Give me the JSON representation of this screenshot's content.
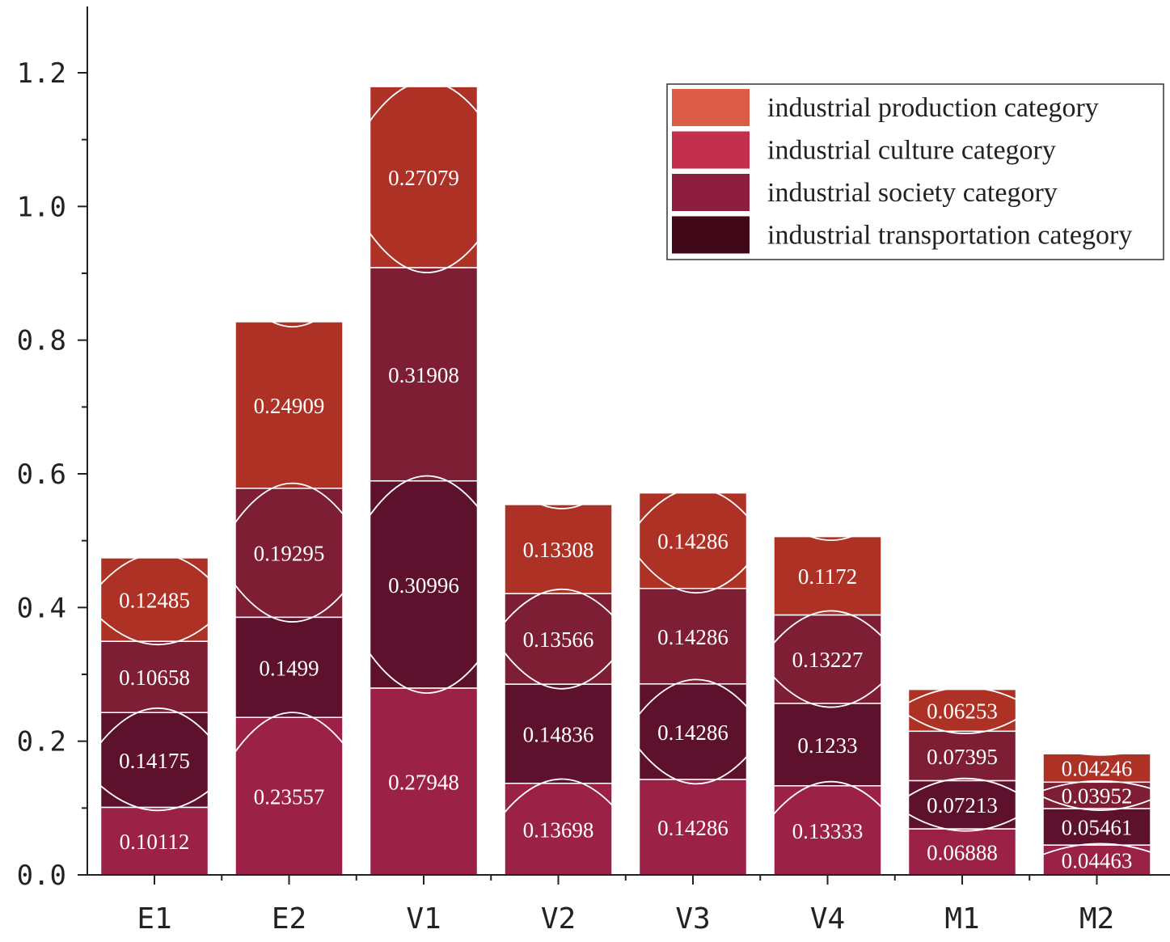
{
  "chart_data": {
    "type": "bar",
    "stacked": true,
    "categories": [
      "E1",
      "E2",
      "V1",
      "V2",
      "V3",
      "V4",
      "M1",
      "M2"
    ],
    "series": [
      {
        "name": "industrial culture category",
        "color": "#9c2147",
        "values": [
          0.10112,
          0.23557,
          0.27948,
          0.13698,
          0.14286,
          0.13333,
          0.06888,
          0.04463
        ]
      },
      {
        "name": "industrial transportation category",
        "color": "#5e112c",
        "values": [
          0.14175,
          0.1499,
          0.30996,
          0.14836,
          0.14286,
          0.1233,
          0.07213,
          0.05461
        ]
      },
      {
        "name": "industrial society category",
        "color": "#7e1e34",
        "values": [
          0.10658,
          0.19295,
          0.31908,
          0.13566,
          0.14286,
          0.13227,
          0.07395,
          0.03952
        ]
      },
      {
        "name": "industrial production category",
        "color": "#ae3126",
        "values": [
          0.12485,
          0.24909,
          0.27079,
          0.13308,
          0.14286,
          0.1172,
          0.06253,
          0.04246
        ]
      }
    ],
    "legend": {
      "placement": "top-right",
      "entries": [
        {
          "label": "industrial production category",
          "color": "#dc5d47"
        },
        {
          "label": "industrial culture category",
          "color": "#c3304d"
        },
        {
          "label": "industrial society category",
          "color": "#8d1e3f"
        },
        {
          "label": "industrial transportation category",
          "color": "#3f0718"
        }
      ]
    },
    "title": "",
    "xlabel": "",
    "ylabel": "",
    "ylim": [
      0,
      1.3
    ],
    "yticks": [
      0.0,
      0.2,
      0.4,
      0.6,
      0.8,
      1.0,
      1.2
    ],
    "ytick_labels": [
      "0.0",
      "0.2",
      "0.4",
      "0.6",
      "0.8",
      "1.0",
      "1.2"
    ],
    "grid": false
  }
}
